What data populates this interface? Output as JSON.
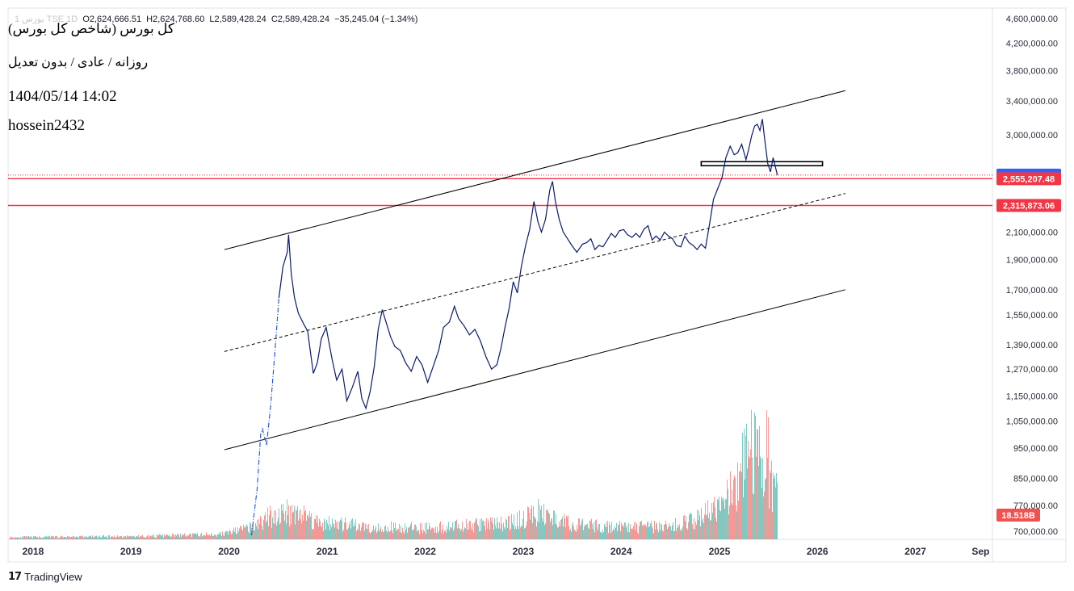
{
  "legend": {
    "symbol_faint": "1 بورس TSE 1D",
    "open": "O2,624,666.51",
    "high": "H2,624,768.60",
    "low": "L2,589,428.24",
    "close": "C2,589,428.24",
    "change": "−35,245.04 (−1.34%)"
  },
  "overlay": {
    "title": "کل بورس (شاخص کل بورس)",
    "subtitle": "روزانه / عادی / بدون تعدیل",
    "timestamp": "1404/05/14 14:02",
    "author": "hossein2432"
  },
  "branding": {
    "label": "TradingView"
  },
  "colors": {
    "price_line": "#0a1a6b",
    "price_line_2020": "#1f4fd6",
    "level_red": "#f23645",
    "last_price_blue": "#2962ff",
    "volume_up": "#26a69a",
    "volume_down": "#ef5350",
    "axis_text": "#2a2e39",
    "trend_line": "#000000"
  },
  "chart_data": {
    "type": "line",
    "scale": "log",
    "x_axis": {
      "tick_labels": [
        "2018",
        "2019",
        "2020",
        "2021",
        "2022",
        "2023",
        "2024",
        "2025",
        "2026",
        "2027",
        "Sep"
      ],
      "tick_dates": [
        "2018-01-01",
        "2019-01-01",
        "2020-01-01",
        "2021-01-01",
        "2022-01-01",
        "2023-01-01",
        "2024-01-01",
        "2025-01-01",
        "2026-01-01",
        "2027-01-01",
        "2027-09-01"
      ],
      "range": [
        "2017-09-30",
        "2027-10-15"
      ]
    },
    "y_axis": {
      "tick_labels": [
        "4,600,000.00",
        "4,200,000.00",
        "3,800,000.00",
        "3,400,000.00",
        "3,000,000.00",
        "2,100,000.00",
        "1,900,000.00",
        "1,700,000.00",
        "1,550,000.00",
        "1,390,000.00",
        "1,270,000.00",
        "1,150,000.00",
        "1,050,000.00",
        "950,000.00",
        "850,000.00",
        "770,000.00",
        "700,000.00"
      ],
      "tick_values": [
        4600000,
        4200000,
        3800000,
        3400000,
        3000000,
        2100000,
        1900000,
        1700000,
        1550000,
        1390000,
        1270000,
        1150000,
        1050000,
        950000,
        850000,
        770000,
        700000
      ],
      "range": [
        680000,
        4780000
      ]
    },
    "series": [
      {
        "values_dates": [
          "2020-03-25",
          "2020-04-15",
          "2020-04-28",
          "2020-05-05",
          "2020-05-20",
          "2020-06-05",
          "2020-06-20",
          "2020-07-05",
          "2020-07-20",
          "2020-08-05",
          "2020-08-10",
          "2020-08-20",
          "2020-09-01",
          "2020-09-15",
          "2020-10-05",
          "2020-10-20",
          "2020-11-10",
          "2020-11-25",
          "2020-12-10",
          "2020-12-28",
          "2021-01-20",
          "2021-02-05",
          "2021-02-25",
          "2021-03-15",
          "2021-04-05",
          "2021-04-25",
          "2021-05-10",
          "2021-05-25",
          "2021-06-10",
          "2021-06-25",
          "2021-07-10",
          "2021-07-25",
          "2021-08-10",
          "2021-08-25",
          "2021-09-10",
          "2021-09-30",
          "2021-10-20",
          "2021-11-10",
          "2021-11-30",
          "2021-12-20",
          "2022-01-10",
          "2022-01-30",
          "2022-02-20",
          "2022-03-10",
          "2022-04-01",
          "2022-04-20",
          "2022-05-05",
          "2022-05-25",
          "2022-06-15",
          "2022-07-05",
          "2022-07-25",
          "2022-08-15",
          "2022-09-05",
          "2022-09-25",
          "2022-10-10",
          "2022-10-25",
          "2022-11-10",
          "2022-11-25",
          "2022-12-10",
          "2022-12-25",
          "2023-01-10",
          "2023-01-25",
          "2023-02-10",
          "2023-02-25",
          "2023-03-10",
          "2023-03-25",
          "2023-04-10",
          "2023-04-20",
          "2023-05-01",
          "2023-05-15",
          "2023-05-30",
          "2023-06-15",
          "2023-07-01",
          "2023-07-20",
          "2023-08-10",
          "2023-08-25",
          "2023-09-10",
          "2023-09-25",
          "2023-10-10",
          "2023-10-25",
          "2023-11-10",
          "2023-11-25",
          "2023-12-10",
          "2023-12-25",
          "2024-01-10",
          "2024-01-25",
          "2024-02-10",
          "2024-02-25",
          "2024-03-10",
          "2024-03-25",
          "2024-04-10",
          "2024-04-25",
          "2024-05-10",
          "2024-05-25",
          "2024-06-10",
          "2024-06-25",
          "2024-07-10",
          "2024-07-25",
          "2024-08-10",
          "2024-08-25",
          "2024-09-10",
          "2024-09-25",
          "2024-10-10",
          "2024-10-25",
          "2024-11-10",
          "2024-11-25",
          "2024-12-10",
          "2024-12-25",
          "2025-01-10",
          "2025-01-25",
          "2025-02-10",
          "2025-02-25",
          "2025-03-10",
          "2025-03-25",
          "2025-04-10",
          "2025-04-20",
          "2025-05-01",
          "2025-05-12",
          "2025-05-22",
          "2025-06-01",
          "2025-06-10",
          "2025-06-20",
          "2025-06-30",
          "2025-07-10",
          "2025-07-20",
          "2025-08-05"
        ],
        "values": [
          690000,
          820000,
          1000000,
          1020000,
          960000,
          1120000,
          1350000,
          1650000,
          1850000,
          1950000,
          2080000,
          1800000,
          1650000,
          1560000,
          1500000,
          1460000,
          1250000,
          1300000,
          1420000,
          1480000,
          1310000,
          1220000,
          1270000,
          1130000,
          1190000,
          1260000,
          1140000,
          1100000,
          1170000,
          1280000,
          1470000,
          1580000,
          1500000,
          1430000,
          1380000,
          1360000,
          1300000,
          1260000,
          1330000,
          1290000,
          1210000,
          1280000,
          1360000,
          1480000,
          1510000,
          1600000,
          1530000,
          1490000,
          1440000,
          1470000,
          1410000,
          1330000,
          1270000,
          1290000,
          1370000,
          1480000,
          1590000,
          1750000,
          1680000,
          1850000,
          2000000,
          2120000,
          2350000,
          2180000,
          2100000,
          2200000,
          2450000,
          2530000,
          2350000,
          2200000,
          2100000,
          2050000,
          2000000,
          1950000,
          2010000,
          2020000,
          2050000,
          1970000,
          2000000,
          1990000,
          2040000,
          2090000,
          2060000,
          2110000,
          2120000,
          2080000,
          2060000,
          2090000,
          2060000,
          2120000,
          2150000,
          2040000,
          2070000,
          2040000,
          2100000,
          2070000,
          2050000,
          2000000,
          1990000,
          2070000,
          2020000,
          2000000,
          1970000,
          2010000,
          1980000,
          2160000,
          2370000,
          2460000,
          2560000,
          2760000,
          2880000,
          2790000,
          2810000,
          2900000,
          2740000,
          2850000,
          2990000,
          3100000,
          3120000,
          3050000,
          3180000,
          2920000,
          2700000,
          2620000,
          2760000,
          2589428.24
        ]
      }
    ],
    "levels": [
      {
        "label": "2,589,428.24",
        "value": 2589428.24,
        "kind": "last-price",
        "style": "dotted"
      },
      {
        "label": "2,555,207.48",
        "value": 2555207.48,
        "kind": "horizontal-line",
        "style": "solid"
      },
      {
        "label": "2,315,873.06",
        "value": 2315873.06,
        "kind": "horizontal-line",
        "style": "solid"
      }
    ],
    "trend_lines": [
      {
        "role": "channel-upper",
        "style": "solid",
        "from": {
          "date": "2019-12-15",
          "value": 1970000
        },
        "to": {
          "date": "2026-04-15",
          "value": 3530000
        }
      },
      {
        "role": "channel-middle",
        "style": "dashed",
        "from": {
          "date": "2019-12-15",
          "value": 1355000
        },
        "to": {
          "date": "2026-04-15",
          "value": 2420000
        }
      },
      {
        "role": "channel-lower",
        "style": "solid",
        "from": {
          "date": "2019-12-15",
          "value": 945000
        },
        "to": {
          "date": "2026-04-15",
          "value": 1700000
        }
      }
    ],
    "shapes": [
      {
        "role": "support-rectangle",
        "from": {
          "date": "2024-10-25",
          "value": 2720000
        },
        "to": {
          "date": "2026-01-20",
          "value": 2680000
        }
      }
    ],
    "volume": {
      "last_label": "18.518B",
      "profile": [
        [
          "2017-10-01",
          0.02
        ],
        [
          "2019-03-01",
          0.03
        ],
        [
          "2019-12-01",
          0.05
        ],
        [
          "2020-04-01",
          0.12
        ],
        [
          "2020-06-01",
          0.22
        ],
        [
          "2020-09-01",
          0.28
        ],
        [
          "2020-12-01",
          0.16
        ],
        [
          "2021-06-01",
          0.12
        ],
        [
          "2021-12-01",
          0.11
        ],
        [
          "2022-06-01",
          0.13
        ],
        [
          "2022-12-01",
          0.17
        ],
        [
          "2023-03-01",
          0.26
        ],
        [
          "2023-07-01",
          0.14
        ],
        [
          "2024-01-01",
          0.12
        ],
        [
          "2024-07-01",
          0.12
        ],
        [
          "2024-11-01",
          0.22
        ],
        [
          "2025-01-01",
          0.33
        ],
        [
          "2025-03-01",
          0.55
        ],
        [
          "2025-05-01",
          0.85
        ],
        [
          "2025-08-05",
          0.45
        ]
      ]
    }
  }
}
